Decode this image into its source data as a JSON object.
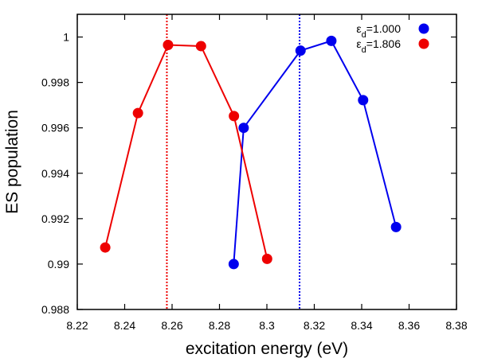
{
  "chart_data": {
    "type": "line",
    "title": "",
    "xlabel": "excitation energy (eV)",
    "ylabel": "ES population",
    "xlim": [
      8.22,
      8.38
    ],
    "ylim": [
      0.988,
      1.001
    ],
    "grid": false,
    "legend_position": "top-right",
    "x_ticks": [
      {
        "value": 8.22,
        "label": "8.22"
      },
      {
        "value": 8.24,
        "label": "8.24"
      },
      {
        "value": 8.26,
        "label": "8.26"
      },
      {
        "value": 8.28,
        "label": "8.28"
      },
      {
        "value": 8.3,
        "label": "8.3"
      },
      {
        "value": 8.32,
        "label": "8.32"
      },
      {
        "value": 8.34,
        "label": "8.34"
      },
      {
        "value": 8.36,
        "label": "8.36"
      },
      {
        "value": 8.38,
        "label": "8.38"
      }
    ],
    "y_ticks": [
      {
        "value": 0.988,
        "label": "0.988"
      },
      {
        "value": 0.99,
        "label": "0.99"
      },
      {
        "value": 0.992,
        "label": "0.992"
      },
      {
        "value": 0.994,
        "label": "0.994"
      },
      {
        "value": 0.996,
        "label": "0.996"
      },
      {
        "value": 0.998,
        "label": "0.998"
      },
      {
        "value": 1.0,
        "label": "1"
      }
    ],
    "series": [
      {
        "name": "ε_d=1.000",
        "legend_symbol": "ε",
        "legend_sub": "d",
        "legend_value": "=1.000",
        "color": "#0000ee",
        "x": [
          8.286,
          8.2902,
          8.3142,
          8.3272,
          8.3406,
          8.3545
        ],
        "y": [
          0.99,
          0.996,
          0.9994,
          0.99983,
          0.99722,
          0.99163
        ]
      },
      {
        "name": "ε_d=1.806",
        "legend_symbol": "ε",
        "legend_sub": "d",
        "legend_value": "=1.806",
        "color": "#ee0000",
        "x": [
          8.2318,
          8.2456,
          8.2583,
          8.2722,
          8.2861,
          8.3001
        ],
        "y": [
          0.99073,
          0.99665,
          0.99965,
          0.9996,
          0.99652,
          0.99023
        ]
      }
    ],
    "vertical_lines": [
      {
        "x": 8.2578,
        "color": "#ee0000",
        "style": "dotted"
      },
      {
        "x": 8.3138,
        "color": "#0000ee",
        "style": "dotted"
      }
    ]
  }
}
